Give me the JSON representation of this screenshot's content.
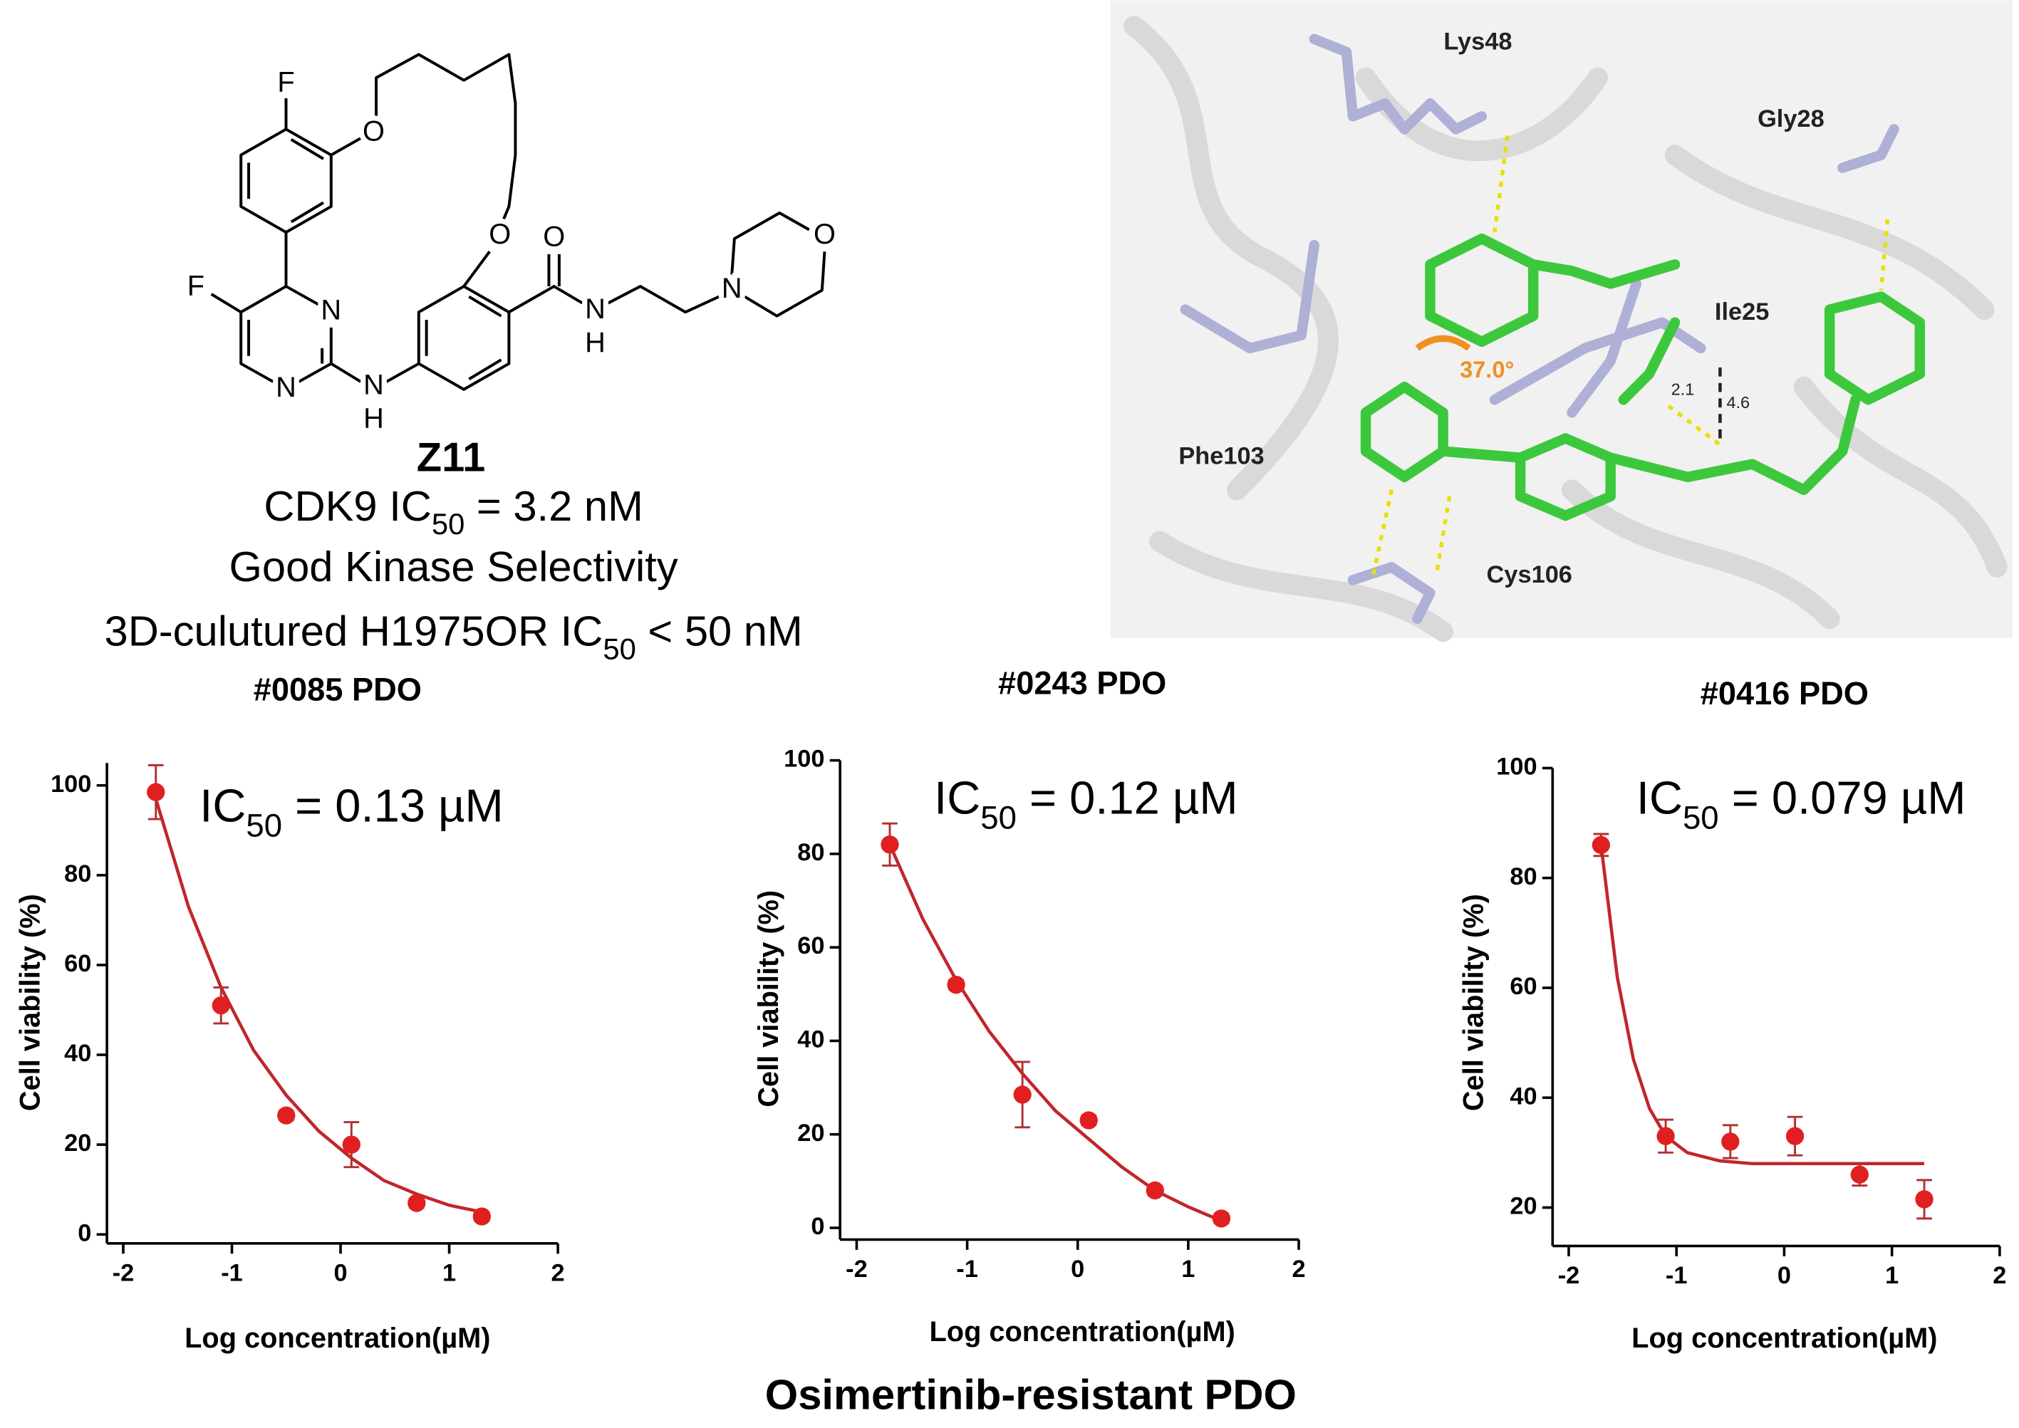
{
  "compound": {
    "atoms": [
      "F",
      "O",
      "F",
      "N",
      "N",
      "N",
      "H",
      "O",
      "O",
      "N",
      "H",
      "N",
      "O"
    ],
    "name": "Z11",
    "lines": [
      {
        "prefix": "CDK9 IC",
        "sub": "50",
        "suffix": " = 3.2 nM"
      },
      {
        "text": "Good Kinase Selectivity"
      },
      {
        "prefix": "3D-culutured H1975OR IC",
        "sub": "50",
        "suffix": " < 50 nM"
      }
    ]
  },
  "docking": {
    "residues": [
      "Lys48",
      "Gly28",
      "Ile25",
      "Phe103",
      "Cys106"
    ],
    "angle": "37.0°",
    "distances": [
      "2.1",
      "4.6"
    ]
  },
  "chart_data": [
    {
      "type": "scatter",
      "title": "#0085 PDO",
      "annotation": {
        "prefix": "IC",
        "sub": "50",
        "suffix": " = 0.13 µM"
      },
      "x_label": "Log concentration(µM)",
      "y_label": "Cell viability (%)",
      "x": [
        -1.7,
        -1.1,
        -0.5,
        0.1,
        0.7,
        1.3
      ],
      "values": [
        98.5,
        51,
        26.5,
        20,
        7,
        4
      ],
      "errors": [
        6,
        4,
        1,
        5,
        1,
        1
      ],
      "color": "#e02020",
      "curve": {
        "x": [
          -1.7,
          -1.4,
          -1.1,
          -0.8,
          -0.5,
          -0.2,
          0.1,
          0.4,
          0.7,
          1.0,
          1.3
        ],
        "values": [
          97,
          73,
          55,
          41,
          31,
          23,
          17,
          12,
          9,
          6.5,
          5
        ],
        "color": "#c0262b"
      },
      "xlim": [
        -2.15,
        2
      ],
      "xticks": [
        -2,
        -1,
        0,
        1,
        2
      ],
      "ylim": [
        -2,
        105
      ],
      "yticks": [
        0,
        20,
        40,
        60,
        80,
        100
      ]
    },
    {
      "type": "scatter",
      "title": "#0243 PDO",
      "annotation": {
        "prefix": "IC",
        "sub": "50",
        "suffix": " = 0.12 µM"
      },
      "x_label": "Log concentration(µM)",
      "y_label": "Cell viability (%)",
      "x": [
        -1.7,
        -1.1,
        -0.5,
        0.1,
        0.7,
        1.3
      ],
      "values": [
        82,
        52,
        28.5,
        23,
        8,
        2
      ],
      "errors": [
        4.5,
        1,
        7,
        1,
        1,
        1
      ],
      "color": "#e02020",
      "curve": {
        "x": [
          -1.7,
          -1.4,
          -1.1,
          -0.8,
          -0.5,
          -0.2,
          0.1,
          0.4,
          0.7,
          1.0,
          1.3
        ],
        "values": [
          82,
          66,
          53,
          42,
          33,
          25,
          19,
          13,
          8,
          4.5,
          1.5
        ],
        "color": "#c0262b"
      },
      "xlim": [
        -2.15,
        2
      ],
      "xticks": [
        -2,
        -1,
        0,
        1,
        2
      ],
      "ylim": [
        -2.5,
        100
      ],
      "yticks": [
        0,
        20,
        40,
        60,
        80,
        100
      ]
    },
    {
      "type": "scatter",
      "title": "#0416 PDO",
      "annotation": {
        "prefix": "IC",
        "sub": "50",
        "suffix": " = 0.079 µM"
      },
      "x_label": "Log concentration(µM)",
      "y_label": "Cell viability (%)",
      "x": [
        -1.7,
        -1.1,
        -0.5,
        0.1,
        0.7,
        1.3
      ],
      "values": [
        86,
        33,
        32,
        33,
        26,
        21.5
      ],
      "errors": [
        2,
        3,
        3,
        3.5,
        2,
        3.5
      ],
      "color": "#e02020",
      "curve": {
        "x": [
          -1.7,
          -1.55,
          -1.4,
          -1.25,
          -1.1,
          -0.9,
          -0.6,
          -0.3,
          0,
          0.5,
          1.0,
          1.3
        ],
        "values": [
          86,
          62,
          47,
          38,
          33,
          30,
          28.5,
          28,
          28,
          28,
          28,
          28
        ],
        "color": "#c0262b"
      },
      "xlim": [
        -2.15,
        2
      ],
      "xticks": [
        -2,
        -1,
        0,
        1,
        2
      ],
      "ylim": [
        13,
        100
      ],
      "yticks": [
        20,
        40,
        60,
        80,
        100
      ]
    }
  ],
  "footer": "Osimertinib-resistant PDO"
}
